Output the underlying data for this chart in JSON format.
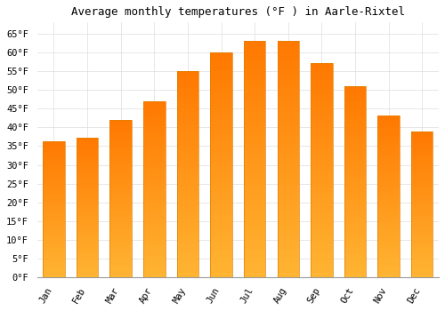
{
  "title": "Average monthly temperatures (°F ) in Aarle-Rixtel",
  "months": [
    "Jan",
    "Feb",
    "Mar",
    "Apr",
    "May",
    "Jun",
    "Jul",
    "Aug",
    "Sep",
    "Oct",
    "Nov",
    "Dec"
  ],
  "values": [
    36.3,
    37.2,
    42.1,
    46.9,
    55.0,
    59.9,
    63.0,
    63.0,
    57.2,
    51.1,
    43.2,
    39.0
  ],
  "bar_color_face": "#FFA500",
  "bar_color_edge": "#E08000",
  "background_color": "#FFFFFF",
  "grid_color": "#DDDDDD",
  "ylim": [
    0,
    68
  ],
  "yticks": [
    0,
    5,
    10,
    15,
    20,
    25,
    30,
    35,
    40,
    45,
    50,
    55,
    60,
    65
  ],
  "title_fontsize": 9,
  "tick_fontsize": 7.5,
  "title_font": "monospace",
  "axis_font": "monospace"
}
